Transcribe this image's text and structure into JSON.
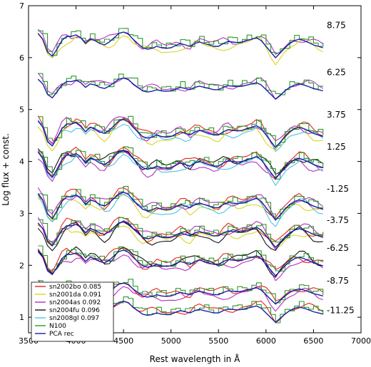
{
  "chart_data": {
    "type": "line",
    "title": "",
    "xlabel": "Rest wavelength in Å",
    "ylabel": "Log flux + const.",
    "xlim": [
      3500,
      7000
    ],
    "ylim": [
      0.7,
      7.0
    ],
    "xticks": [
      3500,
      4000,
      4500,
      5000,
      5500,
      6000,
      6500,
      7000
    ],
    "yticks": [
      1,
      2,
      3,
      4,
      5,
      6,
      7
    ],
    "grid": false,
    "legend_position": "bottom-left",
    "legend": [
      {
        "name": "sn2002bo 0.085",
        "color": "#e8231c"
      },
      {
        "name": "sn2001da 0.091",
        "color": "#d9d61f"
      },
      {
        "name": "sn2004as 0.092",
        "color": "#b62ec0"
      },
      {
        "name": "sn2004fu 0.096",
        "color": "#111111"
      },
      {
        "name": "sn2008gl 0.097",
        "color": "#4bc4e8"
      },
      {
        "name": "N100",
        "color": "#2a9a2a"
      },
      {
        "name": "PCA rec",
        "color": "#1c1ca8"
      }
    ],
    "template_x": [
      3600,
      3650,
      3700,
      3750,
      3800,
      3850,
      3900,
      3950,
      4000,
      4050,
      4100,
      4150,
      4200,
      4250,
      4300,
      4350,
      4400,
      4450,
      4500,
      4550,
      4600,
      4650,
      4700,
      4750,
      4800,
      4850,
      4900,
      4950,
      5000,
      5050,
      5100,
      5150,
      5200,
      5250,
      5300,
      5350,
      5400,
      5450,
      5500,
      5550,
      5600,
      5650,
      5700,
      5750,
      5800,
      5850,
      5900,
      5950,
      6000,
      6050,
      6100,
      6150,
      6200,
      6250,
      6300,
      6350,
      6400,
      6450,
      6500,
      6550,
      6600
    ],
    "template_y": [
      0.3,
      0.1,
      -0.35,
      -0.5,
      -0.25,
      0.05,
      0.2,
      0.2,
      0.25,
      0.15,
      -0.05,
      0.1,
      0.05,
      -0.05,
      -0.1,
      0.0,
      0.15,
      0.3,
      0.35,
      0.28,
      0.1,
      -0.05,
      -0.2,
      -0.25,
      -0.22,
      -0.15,
      -0.2,
      -0.22,
      -0.2,
      -0.12,
      -0.05,
      -0.1,
      -0.15,
      -0.05,
      0.0,
      -0.05,
      -0.1,
      -0.15,
      -0.15,
      -0.05,
      0.02,
      0.0,
      -0.02,
      0.0,
      0.05,
      0.1,
      0.15,
      0.05,
      -0.15,
      -0.35,
      -0.55,
      -0.38,
      -0.2,
      -0.05,
      0.05,
      0.1,
      0.05,
      -0.02,
      -0.1,
      -0.15,
      -0.2
    ],
    "phase_groups": [
      {
        "phase": "8.75",
        "label_y": 6.62,
        "baseline": 6.3,
        "amp": 0.55,
        "series": [
          "sn2004as 0.092",
          "sn2001da 0.091",
          "N100",
          "PCA rec"
        ]
      },
      {
        "phase": "6.25",
        "label_y": 5.72,
        "baseline": 5.45,
        "amp": 0.45,
        "series": [
          "sn2004as 0.092",
          "N100",
          "PCA rec"
        ]
      },
      {
        "phase": "3.75",
        "label_y": 4.9,
        "baseline": 4.6,
        "amp": 0.6,
        "series": [
          "sn2002bo 0.085",
          "sn2001da 0.091",
          "sn2004as 0.092",
          "sn2008gl 0.097",
          "N100",
          "PCA rec"
        ]
      },
      {
        "phase": "1.25",
        "label_y": 4.28,
        "baseline": 4.0,
        "amp": 0.6,
        "series": [
          "sn2002bo 0.085",
          "sn2004as 0.092",
          "sn2004fu 0.096",
          "sn2008gl 0.097",
          "N100",
          "PCA rec"
        ]
      },
      {
        "phase": "-1.25",
        "label_y": 3.47,
        "baseline": 3.2,
        "amp": 0.6,
        "series": [
          "sn2002bo 0.085",
          "sn2001da 0.091",
          "sn2004as 0.092",
          "sn2008gl 0.097",
          "N100",
          "PCA rec"
        ]
      },
      {
        "phase": "-3.75",
        "label_y": 2.87,
        "baseline": 2.65,
        "amp": 0.55,
        "series": [
          "sn2002bo 0.085",
          "sn2001da 0.091",
          "sn2004as 0.092",
          "sn2004fu 0.096",
          "N100",
          "PCA rec"
        ]
      },
      {
        "phase": "-6.25",
        "label_y": 2.33,
        "baseline": 2.1,
        "amp": 0.55,
        "series": [
          "sn2002bo 0.085",
          "sn2004as 0.092",
          "sn2004fu 0.096",
          "N100",
          "PCA rec"
        ]
      },
      {
        "phase": "-8.75",
        "label_y": 1.7,
        "baseline": 1.5,
        "amp": 0.45,
        "series": [
          "sn2002bo 0.085",
          "sn2004as 0.092",
          "N100",
          "PCA rec"
        ]
      },
      {
        "phase": "-11.25",
        "label_y": 1.13,
        "baseline": 1.15,
        "amp": 0.45,
        "series": [
          "sn2002bo 0.085",
          "N100",
          "PCA rec"
        ]
      }
    ]
  }
}
